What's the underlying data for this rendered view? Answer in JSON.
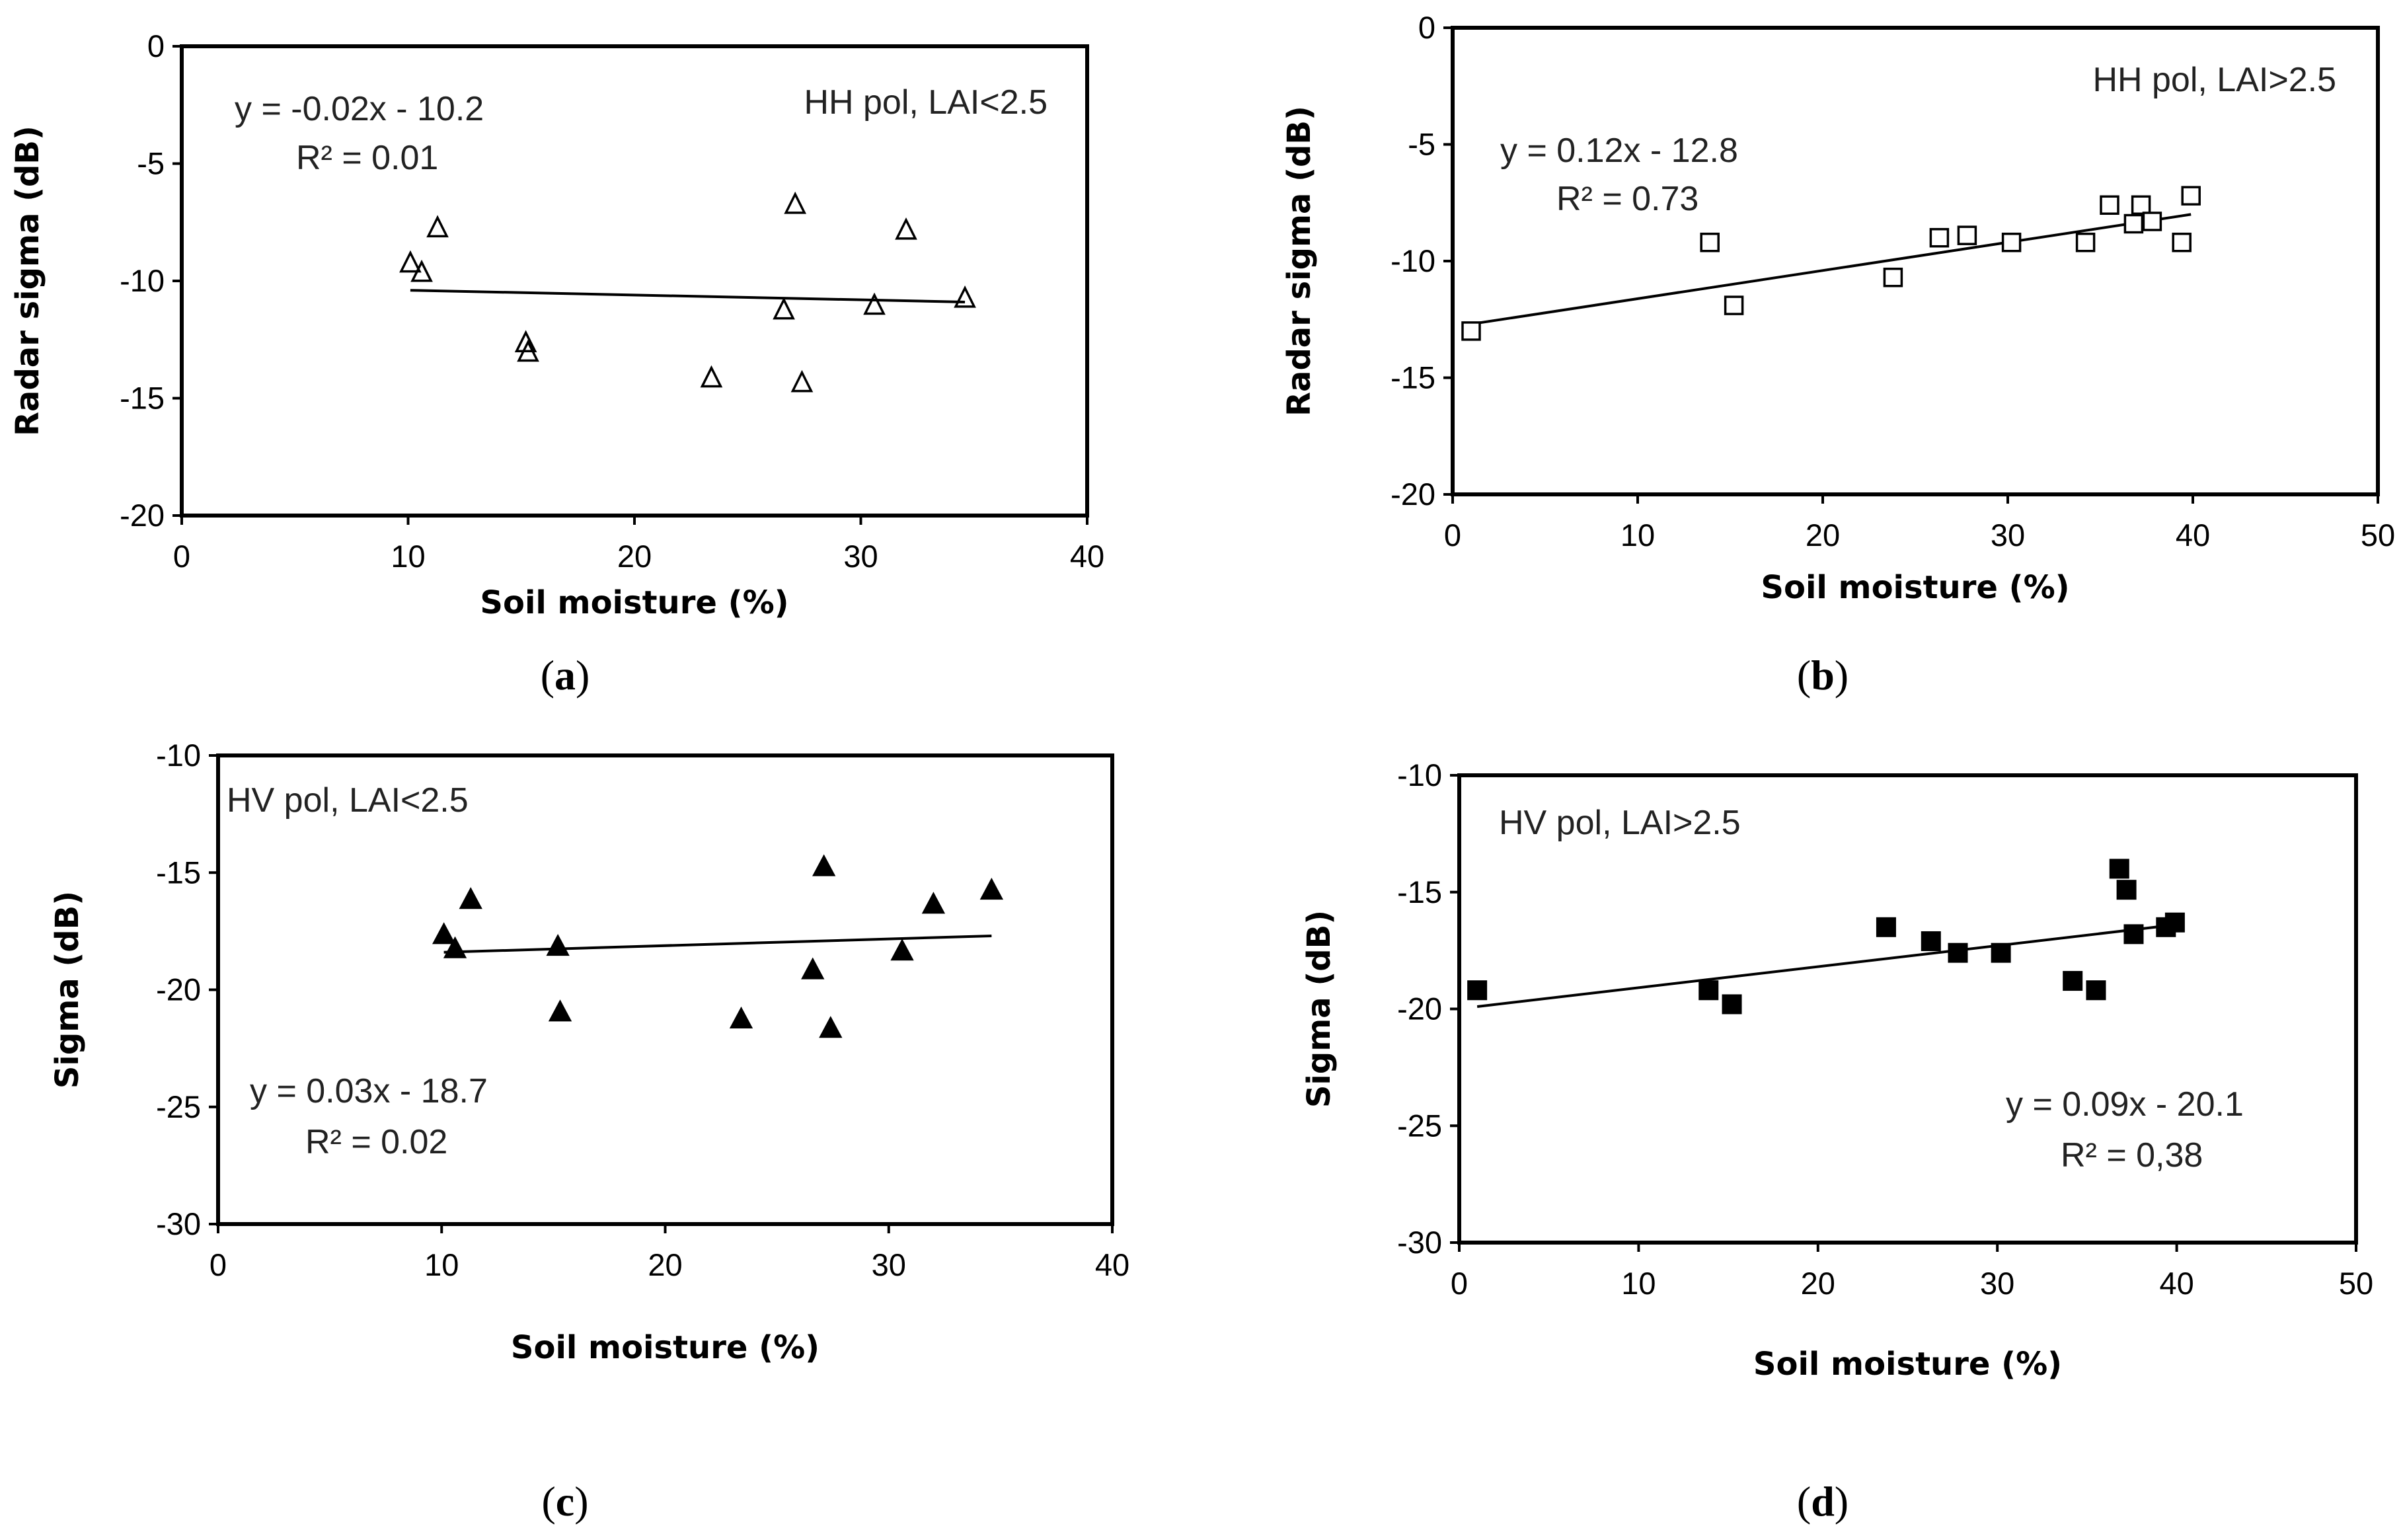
{
  "figure": {
    "panel_tags": [
      {
        "open": "(",
        "letter": "a",
        "close": ")"
      },
      {
        "open": "(",
        "letter": "b",
        "close": ")"
      },
      {
        "open": "(",
        "letter": "c",
        "close": ")"
      },
      {
        "open": "(",
        "letter": "d",
        "close": ")"
      }
    ]
  },
  "chart_data": [
    {
      "type": "scatter",
      "panel": "a",
      "title": "HH pol, LAI<2.5",
      "xlabel": "Soil moisture (%)",
      "ylabel": "Radar sigma (dB)",
      "xlim": [
        0,
        40
      ],
      "ylim": [
        -20,
        0
      ],
      "xticks": [
        0,
        10,
        20,
        30,
        40
      ],
      "yticks": [
        -20,
        -15,
        -10,
        -5,
        0
      ],
      "marker": "triangle-open",
      "series": [
        {
          "x": [
            10.1,
            10.6,
            11.3,
            15.2,
            15.3,
            23.4,
            26.6,
            27.1,
            27.4,
            30.6,
            32.0,
            34.6
          ],
          "y": [
            -9.2,
            -9.6,
            -7.7,
            -12.6,
            -13.0,
            -14.1,
            -11.2,
            -6.7,
            -14.3,
            -11.0,
            -7.8,
            -10.7
          ]
        }
      ],
      "trendline": {
        "x": [
          10.1,
          34.6
        ],
        "y": [
          -10.4,
          -10.9
        ]
      },
      "equation": "y = -0.02x - 10.2",
      "r2": "R² = 0.01",
      "grid": false
    },
    {
      "type": "scatter",
      "panel": "b",
      "title": "HH pol, LAI>2.5",
      "xlabel": "Soil moisture (%)",
      "ylabel": "Radar sigma (dB)",
      "xlim": [
        0,
        50
      ],
      "ylim": [
        -20,
        0
      ],
      "xticks": [
        0,
        10,
        20,
        30,
        40,
        50
      ],
      "yticks": [
        -20,
        -15,
        -10,
        -5,
        0
      ],
      "marker": "square-open",
      "series": [
        {
          "x": [
            1.0,
            13.9,
            15.2,
            23.8,
            26.3,
            27.8,
            30.2,
            34.2,
            35.5,
            36.8,
            37.2,
            37.8,
            39.4,
            39.9
          ],
          "y": [
            -13.0,
            -9.2,
            -11.9,
            -10.7,
            -9.0,
            -8.9,
            -9.2,
            -9.2,
            -7.6,
            -8.4,
            -7.6,
            -8.3,
            -9.2,
            -7.2
          ]
        }
      ],
      "trendline": {
        "x": [
          1.0,
          39.9
        ],
        "y": [
          -12.7,
          -8.0
        ]
      },
      "equation": "y = 0.12x - 12.8",
      "r2": "R² = 0.73",
      "grid": false
    },
    {
      "type": "scatter",
      "panel": "c",
      "title": "HV pol, LAI<2.5",
      "xlabel": "Soil moisture (%)",
      "ylabel": "Sigma (dB)",
      "xlim": [
        0,
        40
      ],
      "ylim": [
        -30,
        -10
      ],
      "xticks": [
        0,
        10,
        20,
        30,
        40
      ],
      "yticks": [
        -30,
        -25,
        -20,
        -15,
        -10
      ],
      "marker": "triangle-filled",
      "series": [
        {
          "x": [
            10.1,
            10.6,
            11.3,
            15.2,
            15.3,
            23.4,
            26.6,
            27.1,
            27.4,
            30.6,
            32.0,
            34.6
          ],
          "y": [
            -17.6,
            -18.2,
            -16.1,
            -18.1,
            -20.9,
            -21.2,
            -19.1,
            -14.7,
            -21.6,
            -18.3,
            -16.3,
            -15.7
          ]
        }
      ],
      "trendline": {
        "x": [
          10.1,
          34.6
        ],
        "y": [
          -18.4,
          -17.7
        ]
      },
      "equation": "y = 0.03x - 18.7",
      "r2": "R² = 0.02",
      "grid": false
    },
    {
      "type": "scatter",
      "panel": "d",
      "title": "HV pol, LAI>2.5",
      "xlabel": "Soil moisture (%)",
      "ylabel": "Sigma (dB)",
      "xlim": [
        0,
        50
      ],
      "ylim": [
        -30,
        -10
      ],
      "xticks": [
        0,
        10,
        20,
        30,
        40,
        50
      ],
      "yticks": [
        -30,
        -25,
        -20,
        -15,
        -10
      ],
      "marker": "square-filled",
      "series": [
        {
          "x": [
            1.0,
            13.9,
            15.2,
            23.8,
            26.3,
            27.8,
            30.2,
            34.2,
            35.5,
            36.8,
            37.2,
            37.6,
            39.4,
            39.9
          ],
          "y": [
            -19.2,
            -19.2,
            -19.8,
            -16.5,
            -17.1,
            -17.6,
            -17.6,
            -18.8,
            -19.2,
            -14.0,
            -14.9,
            -16.8,
            -16.5,
            -16.3
          ]
        }
      ],
      "trendline": {
        "x": [
          1.0,
          39.9
        ],
        "y": [
          -19.9,
          -16.4
        ]
      },
      "equation": "y = 0.09x - 20.1",
      "r2": "R² = 0,38",
      "grid": false
    }
  ]
}
